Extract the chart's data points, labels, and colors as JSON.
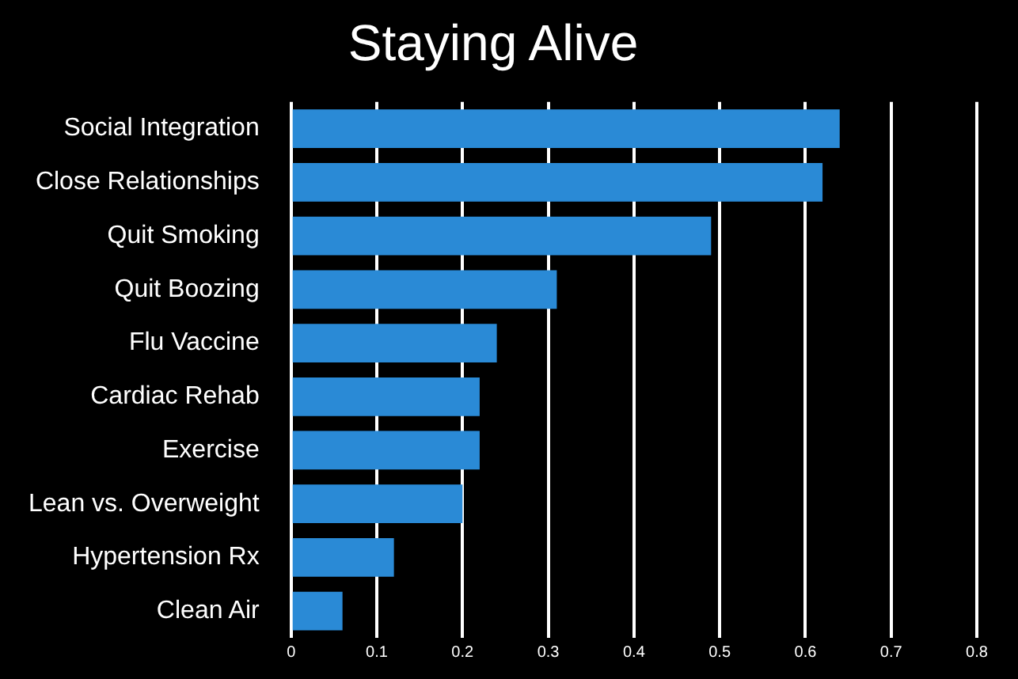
{
  "chart_data": {
    "type": "bar",
    "orientation": "horizontal",
    "title": "Staying Alive",
    "categories": [
      "Social Integration",
      "Close Relationships",
      "Quit Smoking",
      "Quit Boozing",
      "Flu Vaccine",
      "Cardiac Rehab",
      "Exercise",
      "Lean vs. Overweight",
      "Hypertension Rx",
      "Clean Air"
    ],
    "values": [
      0.64,
      0.62,
      0.49,
      0.31,
      0.24,
      0.22,
      0.22,
      0.2,
      0.12,
      0.06
    ],
    "color": "#2a8ad6",
    "xlim": [
      0,
      0.8
    ],
    "xticks": [
      0,
      0.1,
      0.2,
      0.3,
      0.4,
      0.5,
      0.6,
      0.7,
      0.8
    ],
    "grid": "x",
    "legend": false
  }
}
